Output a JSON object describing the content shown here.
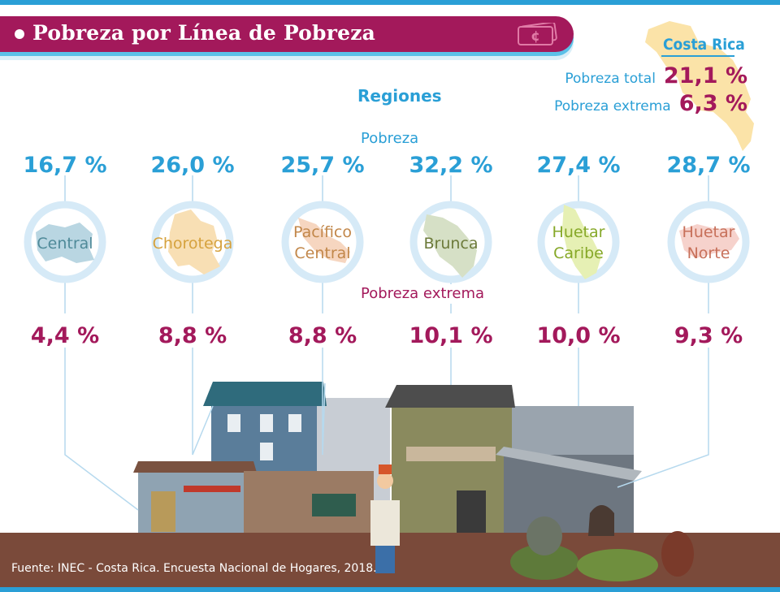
{
  "title": "Pobreza por Línea de Pobreza",
  "country": {
    "name": "Costa Rica",
    "rows": [
      {
        "label": "Pobreza total",
        "value": "21,1 %"
      },
      {
        "label": "Pobreza extrema",
        "value": "6,3 %"
      }
    ]
  },
  "labels": {
    "regions_heading": "Regiones",
    "poverty": "Pobreza",
    "extreme_poverty": "Pobreza extrema"
  },
  "source": "Fuente: INEC - Costa Rica. Encuesta Nacional de Hogares, 2018.",
  "colors": {
    "brand_magenta": "#a3195b",
    "brand_blue": "#2a9fd6",
    "ring": "#d6eaf7",
    "ground": "#7a4a3a"
  },
  "chart_data": {
    "type": "table",
    "categories": [
      "Central",
      "Chorotega",
      "Pacífico Central",
      "Brunca",
      "Huetar Caribe",
      "Huetar Norte"
    ],
    "category_lines": [
      [
        "Central"
      ],
      [
        "Chorotega"
      ],
      [
        "Pacífico",
        "Central"
      ],
      [
        "Brunca"
      ],
      [
        "Huetar",
        "Caribe"
      ],
      [
        "Huetar",
        "Norte"
      ]
    ],
    "category_colors": [
      "#4f8a99",
      "#d6a23e",
      "#c2874a",
      "#6c7a3a",
      "#86a828",
      "#c7705a"
    ],
    "map_colors": [
      "#b9d6e2",
      "#f8dfb4",
      "#f6d6c0",
      "#d6e0c6",
      "#e6f0b4",
      "#f6d2cc"
    ],
    "series": [
      {
        "name": "Pobreza",
        "values": [
          16.7,
          26.0,
          25.7,
          32.2,
          27.4,
          28.7
        ],
        "labels": [
          "16,7 %",
          "26,0 %",
          "25,7 %",
          "32,2 %",
          "27,4 %",
          "28,7 %"
        ]
      },
      {
        "name": "Pobreza extrema",
        "values": [
          4.4,
          8.8,
          8.8,
          10.1,
          10.0,
          9.3
        ],
        "labels": [
          "4,4 %",
          "8,8 %",
          "8,8 %",
          "10,1 %",
          "10,0 %",
          "9,3 %"
        ]
      }
    ]
  }
}
